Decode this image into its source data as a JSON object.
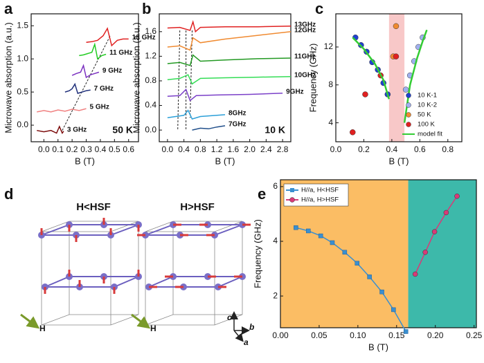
{
  "chart_data": [
    {
      "type": "line",
      "panel": "a",
      "xlabel": "B (T)",
      "ylabel": "Microwave absorption (a.u.)",
      "xlim": [
        -0.09,
        0.67
      ],
      "ylim": [
        -0.25,
        1.68
      ],
      "xticks": [
        {
          "value": 0,
          "label": "0.0"
        },
        0.1,
        0.2,
        0.3,
        0.4,
        0.5,
        0.6
      ],
      "yticks": [
        {
          "value": 0,
          "label": "0.0"
        },
        0.5,
        {
          "value": 1,
          "label": "1.0"
        },
        1.5
      ],
      "annotation": "50 K",
      "annotation_corner": "lower right",
      "series_labels": "end",
      "series": [
        {
          "name": "3 GHz",
          "color": "#7b0a0a",
          "x": [
            -0.05,
            0,
            0.05,
            0.09,
            0.11,
            0.13,
            0.14
          ],
          "values": [
            -0.08,
            -0.1,
            -0.08,
            -0.12,
            -0.02,
            -0.12,
            -0.09
          ]
        },
        {
          "name": "5 GHz",
          "color": "#f08080",
          "x": [
            -0.05,
            0,
            0.05,
            0.1,
            0.15,
            0.2,
            0.25,
            0.3
          ],
          "values": [
            0.2,
            0.22,
            0.2,
            0.23,
            0.21,
            0.24,
            0.22,
            0.25
          ]
        },
        {
          "name": "7 GHz",
          "color": "#1f2f7a",
          "x": [
            0.15,
            0.18,
            0.2,
            0.22,
            0.24,
            0.27,
            0.3,
            0.33
          ],
          "values": [
            0.5,
            0.52,
            0.55,
            0.62,
            0.48,
            0.5,
            0.52,
            0.53
          ]
        },
        {
          "name": "9 GHz",
          "color": "#7a2fc0",
          "x": [
            0.2,
            0.23,
            0.26,
            0.28,
            0.3,
            0.33,
            0.36,
            0.39
          ],
          "values": [
            0.75,
            0.78,
            0.8,
            0.9,
            0.72,
            0.76,
            0.78,
            0.8
          ]
        },
        {
          "name": "11 GHz",
          "color": "#22cc22",
          "x": [
            0.25,
            0.28,
            0.31,
            0.34,
            0.36,
            0.38,
            0.41,
            0.44
          ],
          "values": [
            1.05,
            1.06,
            1.08,
            1.1,
            1.22,
            1.0,
            1.05,
            1.07
          ]
        },
        {
          "name": "13 GHz",
          "color": "#e02020",
          "x": [
            0.3,
            0.34,
            0.38,
            0.42,
            0.45,
            0.48,
            0.52,
            0.56,
            0.6
          ],
          "values": [
            1.25,
            1.26,
            1.28,
            1.35,
            1.46,
            1.2,
            1.28,
            1.3,
            1.3
          ]
        }
      ],
      "guides": [
        {
          "x": [
            0.13,
            0.47
          ],
          "values": [
            -0.08,
            1.35
          ]
        }
      ]
    },
    {
      "type": "line",
      "panel": "b",
      "xlabel": "B (T)",
      "ylabel": "Microwave absorption (a.u.)",
      "xlim": [
        -0.2,
        3.0
      ],
      "ylim": [
        -0.19,
        1.89
      ],
      "xticks": [
        {
          "value": 0,
          "label": "0.0"
        },
        0.4,
        0.8,
        1.2,
        1.6,
        {
          "value": 2,
          "label": "2.0"
        },
        2.4,
        2.8
      ],
      "yticks": [
        {
          "value": 0,
          "label": "0.0"
        },
        0.4,
        0.8,
        1.2,
        1.6
      ],
      "annotation": "10 K",
      "annotation_corner": "lower right",
      "series_labels": "end",
      "series": [
        {
          "name": "7GHz",
          "color": "#1f4e8a",
          "x": [
            0.6,
            0.8,
            1.0,
            1.2,
            1.4
          ],
          "values": [
            0.0,
            0.03,
            0.02,
            0.05,
            0.07
          ]
        },
        {
          "name": "8GHz",
          "color": "#2a9fd8",
          "x": [
            0,
            0.2,
            0.4,
            0.5,
            0.6,
            0.8,
            1.0,
            1.4
          ],
          "values": [
            0.2,
            0.22,
            0.24,
            0.32,
            0.18,
            0.22,
            0.23,
            0.25
          ]
        },
        {
          "name": "9GHz",
          "color": "#7a3fc8",
          "x": [
            0,
            0.3,
            0.45,
            0.55,
            0.7,
            1.2,
            2.0,
            2.8
          ],
          "values": [
            0.55,
            0.56,
            0.66,
            0.48,
            0.56,
            0.57,
            0.58,
            0.6
          ]
        },
        {
          "name": "10GHz",
          "color": "#33dd55",
          "x": [
            0,
            0.3,
            0.5,
            0.6,
            0.8,
            1.4,
            2.2,
            3.0
          ],
          "values": [
            0.82,
            0.84,
            0.9,
            0.75,
            0.84,
            0.85,
            0.86,
            0.87
          ]
        },
        {
          "name": "11GHz",
          "color": "#229922",
          "x": [
            0,
            0.3,
            0.55,
            0.62,
            0.8,
            1.4,
            2.2,
            3.0
          ],
          "values": [
            1.08,
            1.1,
            1.05,
            1.22,
            1.12,
            1.14,
            1.16,
            1.17
          ]
        },
        {
          "name": "12GHz",
          "color": "#f08a30",
          "x": [
            0,
            0.3,
            0.55,
            0.62,
            0.8,
            1.4,
            2.2,
            3.0
          ],
          "values": [
            1.35,
            1.37,
            1.3,
            1.5,
            1.42,
            1.48,
            1.54,
            1.6
          ]
        },
        {
          "name": "13GHz",
          "color": "#e02020",
          "x": [
            0,
            0.3,
            0.55,
            0.62,
            0.68,
            0.8,
            1.4,
            2.2,
            3.0
          ],
          "values": [
            1.66,
            1.67,
            1.62,
            1.76,
            1.6,
            1.67,
            1.68,
            1.68,
            1.69
          ]
        }
      ],
      "guides": [
        {
          "x": [
            0.3,
            0.25
          ],
          "values": [
            1.62,
            0.0
          ]
        },
        {
          "x": [
            0.45,
            0.45
          ],
          "values": [
            1.62,
            0.0
          ]
        },
        {
          "x": [
            0.6,
            0.55
          ],
          "values": [
            1.62,
            0.2
          ]
        }
      ]
    },
    {
      "type": "scatter",
      "panel": "c",
      "xlabel": "B (T)",
      "ylabel": "Frequency (GHz)",
      "xlim": [
        0,
        0.9
      ],
      "ylim": [
        2,
        15.5
      ],
      "xticks": [
        {
          "value": 0,
          "label": "0.0"
        },
        0.2,
        0.4,
        0.6,
        0.8
      ],
      "yticks": [
        4,
        8,
        12
      ],
      "legend": "lower right",
      "regions": [
        {
          "xlim": [
            0.38,
            0.49
          ],
          "color": "#f8c8c8"
        }
      ],
      "series": [
        {
          "name": "10 K-1",
          "color": "#2040d0",
          "x": [
            0.14,
            0.18,
            0.22,
            0.26,
            0.3,
            0.34,
            0.37
          ],
          "values": [
            13.0,
            12.2,
            11.5,
            10.4,
            9.6,
            8.2,
            7.0
          ]
        },
        {
          "name": "10 K-2",
          "color": "#a0b0f0",
          "x": [
            0.5,
            0.53,
            0.56,
            0.59,
            0.62
          ],
          "values": [
            7.5,
            9.0,
            10.5,
            12.0,
            13.0
          ]
        },
        {
          "name": "50 K",
          "color": "#f08a30",
          "x": [
            0.43,
            0.41
          ],
          "values": [
            14.2,
            11.0
          ]
        },
        {
          "name": "100 K",
          "color": "#e02020",
          "x": [
            0.12,
            0.21,
            0.32,
            0.43
          ],
          "values": [
            3.0,
            7.0,
            9.0,
            11.0
          ]
        },
        {
          "name": "model fit",
          "color": "#33cc33",
          "kind": "line",
          "x": [
            0.12,
            0.2,
            0.28,
            0.34,
            0.38,
            null,
            0.49,
            0.53,
            0.58,
            0.62,
            0.65
          ],
          "values": [
            13.0,
            11.8,
            10.2,
            8.5,
            6.5,
            null,
            4.0,
            8.0,
            10.8,
            12.6,
            13.8
          ]
        }
      ]
    },
    {
      "type": "line",
      "panel": "e",
      "xlabel": "B (T)",
      "ylabel": "Frequency (GHz)",
      "xlim": [
        0,
        0.253
      ],
      "ylim": [
        0.84,
        6.25
      ],
      "xticks": [
        {
          "value": 0,
          "label": "0.00"
        },
        0.05,
        {
          "value": 0.1,
          "label": "0.10"
        },
        0.15,
        {
          "value": 0.2,
          "label": "0.20"
        },
        0.25
      ],
      "yticks": [
        2,
        4,
        6
      ],
      "legend": "upper left",
      "regions": [
        {
          "xlim": [
            0,
            0.165
          ],
          "color": "#fbbd64"
        },
        {
          "xlim": [
            0.165,
            0.253
          ],
          "color": "#3db9aa"
        }
      ],
      "series": [
        {
          "name": "H//a, H<HSF",
          "color": "#3a8fd0",
          "marker": "square",
          "x": [
            0.02,
            0.036,
            0.052,
            0.067,
            0.083,
            0.099,
            0.115,
            0.131,
            0.146,
            0.162
          ],
          "values": [
            4.5,
            4.38,
            4.2,
            3.95,
            3.6,
            3.2,
            2.7,
            2.15,
            1.5,
            0.7
          ]
        },
        {
          "name": "H//a, H>HSF",
          "color": "#d83a78",
          "marker": "circle",
          "x": [
            0.174,
            0.187,
            0.199,
            0.214,
            0.228
          ],
          "values": [
            2.8,
            3.6,
            4.35,
            5.05,
            5.65
          ]
        }
      ]
    }
  ],
  "diagram": {
    "panel": "d",
    "labels": [
      "H<HSF",
      "H>HSF"
    ],
    "field": "H",
    "axes": [
      "c",
      "b",
      "a"
    ]
  }
}
